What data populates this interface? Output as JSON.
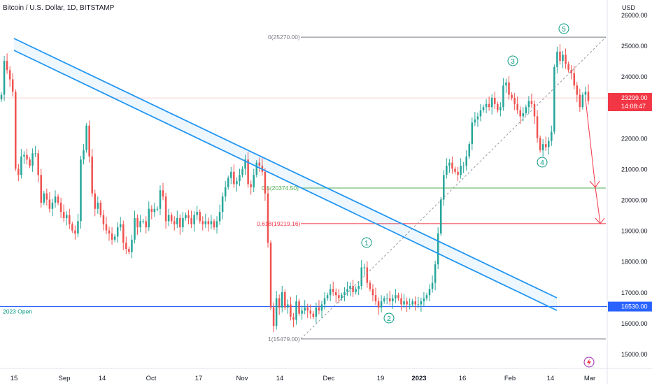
{
  "header": {
    "title": "Bitcoin / U.S. Dollar, 1D, BITSTAMP"
  },
  "chart_data": {
    "type": "candlestick",
    "title": "Bitcoin / U.S. Dollar, 1D, BITSTAMP",
    "y_axis_unit": "USD",
    "ylim": [
      14900,
      26100
    ],
    "y_ticks": [
      "26000.00",
      "25000.00",
      "24000.00",
      "23000.00",
      "22000.00",
      "21000.00",
      "20000.00",
      "19000.00",
      "18000.00",
      "17000.00",
      "16000.00",
      "15000.00"
    ],
    "x_ticks": [
      "15",
      "Sep",
      "14",
      "Oct",
      "17",
      "Nov",
      "14",
      "Dec",
      "19",
      "2023",
      "16",
      "Feb",
      "14",
      "Mar"
    ],
    "current_price": {
      "label": "23299.00",
      "countdown": "14:08:47",
      "value": 23299,
      "color": "#f23645"
    },
    "year_open": {
      "label": "2023 Open",
      "value": 16530,
      "tag": "16530.00",
      "color": "#2962ff"
    },
    "fib_levels": [
      {
        "label": "0(25270.00)",
        "value": 25270,
        "color": "#787b86"
      },
      {
        "label": "0.5(20374.50)",
        "value": 20374.5,
        "color": "#4caf50"
      },
      {
        "label": "0.618(19219.16)",
        "value": 19219.16,
        "color": "#f23645"
      },
      {
        "label": "1(15479.00)",
        "value": 15479,
        "color": "#787b86"
      }
    ],
    "wave_labels": [
      "1",
      "2",
      "3",
      "4",
      "5"
    ],
    "bull_color": "#26a69a",
    "bear_color": "#ef5350",
    "trend_channel_color": "#2196f3",
    "closes": [
      23400,
      24500,
      24200,
      23900,
      23500,
      21000,
      20800,
      21400,
      21450,
      21300,
      21100,
      21500,
      21500,
      20800,
      19900,
      20200,
      20000,
      19700,
      19900,
      20100,
      19900,
      19600,
      19400,
      19500,
      19200,
      19000,
      18900,
      19300,
      21300,
      21600,
      22400,
      21400,
      20200,
      19700,
      19900,
      19500,
      19200,
      19000,
      18900,
      18700,
      18800,
      19100,
      19200,
      18600,
      18400,
      18300,
      18700,
      19400,
      19100,
      19300,
      19300,
      19100,
      19700,
      19600,
      19700,
      19700,
      20300,
      20100,
      19300,
      19500,
      19300,
      19200,
      19400,
      19100,
      19400,
      19500,
      19400,
      19200,
      19500,
      19600,
      19300,
      19200,
      19300,
      19200,
      19300,
      19100,
      19300,
      19600,
      20100,
      20400,
      20700,
      20900,
      20500,
      20600,
      20800,
      21000,
      21300,
      20500,
      20400,
      20800,
      21200,
      21100,
      20900,
      20200,
      18600,
      16500,
      15900,
      16800,
      16500,
      17000,
      16500,
      16600,
      16200,
      16100,
      16700,
      16300,
      16400,
      16500,
      16400,
      16300,
      16200,
      16500,
      16400,
      16600,
      16800,
      16900,
      17100,
      17000,
      16900,
      16800,
      16900,
      17000,
      17100,
      17200,
      17000,
      17100,
      17200,
      17800,
      17800,
      17300,
      17100,
      16900,
      16700,
      16500,
      16700,
      16800,
      16800,
      16700,
      16800,
      16900,
      16800,
      16600,
      16700,
      16600,
      16600,
      16700,
      16600,
      16600,
      16700,
      16800,
      16900,
      17100,
      17300,
      17900,
      18900,
      20000,
      20800,
      21100,
      21200,
      21000,
      20900,
      20800,
      21100,
      21100,
      21400,
      21800,
      22500,
      22600,
      22700,
      22900,
      23000,
      23100,
      23000,
      23300,
      23100,
      22900,
      23000,
      23700,
      23800,
      23400,
      23300,
      23100,
      22900,
      22700,
      22800,
      23000,
      23200,
      23100,
      22700,
      22000,
      21600,
      21800,
      21700,
      21900,
      22200,
      24300,
      24800,
      24500,
      24700,
      24400,
      24200,
      24100,
      23700,
      23400,
      23000,
      23400,
      23500,
      23200
    ]
  }
}
